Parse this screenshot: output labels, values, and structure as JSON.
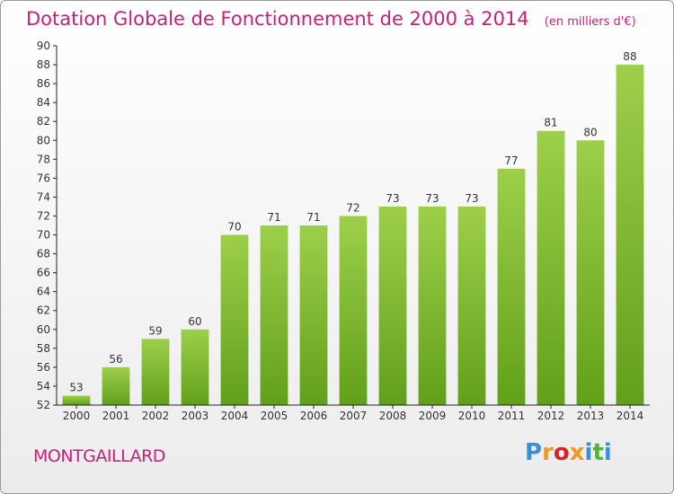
{
  "chart_data": {
    "type": "bar",
    "title": "Dotation Globale de Fonctionnement de 2000 à 2014",
    "subtitle": "(en milliers d'€)",
    "categories": [
      "2000",
      "2001",
      "2002",
      "2003",
      "2004",
      "2005",
      "2006",
      "2007",
      "2008",
      "2009",
      "2010",
      "2011",
      "2012",
      "2013",
      "2014"
    ],
    "values": [
      53,
      56,
      59,
      60,
      70,
      71,
      71,
      72,
      73,
      73,
      73,
      77,
      81,
      80,
      88
    ],
    "ylim": [
      52,
      90
    ],
    "ytick_step": 2,
    "grid": false,
    "bar_color_top": "#9dcf4a",
    "bar_color_bottom": "#62a01a"
  },
  "commune": "MONTGAILLARD",
  "logo": {
    "text": "Proxiti",
    "colors": [
      "#3a8fd6",
      "#f29a1e",
      "#d8232a",
      "#f29a1e",
      "#3a8fd6",
      "#59b031",
      "#3a8fd6"
    ]
  }
}
